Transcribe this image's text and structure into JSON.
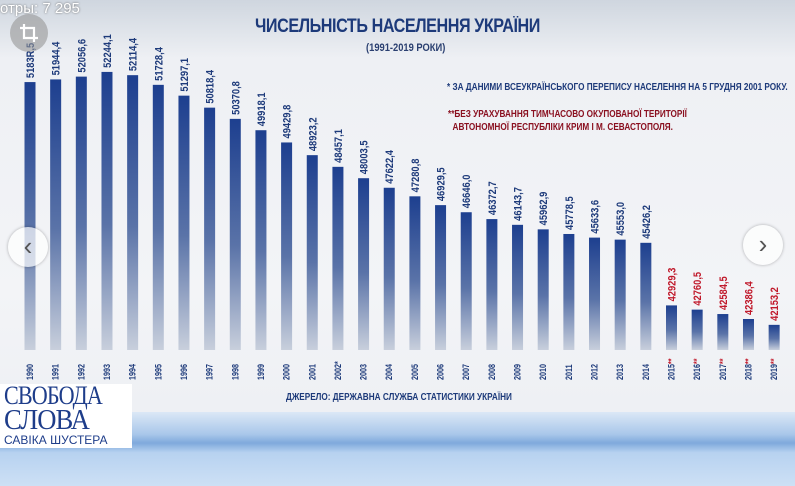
{
  "overlay": {
    "views_text": "отры: 7 295",
    "crop_icon": "crop-icon",
    "prev_icon": "chevron-left-icon",
    "next_icon": "chevron-right-icon"
  },
  "logo": {
    "line1": "СВОБОДА",
    "line2": "СЛОВА",
    "line3": "САВІКА ШУСТЕРА"
  },
  "chart_data": {
    "type": "bar",
    "title": "ЧИСЕЛЬНІСТЬ НАСЕЛЕННЯ УКРАЇНИ",
    "subtitle": "(1991-2019 РОКИ)",
    "notes": [
      "* ЗА ДАНИМИ ВСЕУКРАЇНСЬКОГО ПЕРЕПИСУ НАСЕЛЕННЯ НА 5 ГРУДНЯ 2001 РОКУ.",
      "**БЕЗ УРАХУВАННЯ ТИМЧАСОВО ОКУПОВАНОЇ ТЕРИТОРІЇ\n  АВТОНОМНОЇ РЕСПУБЛІКИ КРИМ І М. СЕВАСТОПОЛЯ."
    ],
    "source": "ДЖЕРЕЛО: ДЕРЖАВНА СЛУЖБА СТАТИСТИКИ УКРАЇНИ",
    "categories": [
      "1990",
      "1991",
      "1992",
      "1993",
      "1994",
      "1995",
      "1996",
      "1997",
      "1998",
      "1999",
      "2000",
      "2001",
      "2002*",
      "2003",
      "2004",
      "2005",
      "2006",
      "2007",
      "2008",
      "2009",
      "2010",
      "2011",
      "2012",
      "2013",
      "2014",
      "2015**",
      "2016**",
      "2017**",
      "2018**",
      "2019**"
    ],
    "values": [
      51838.5,
      51944.4,
      52056.6,
      52244.1,
      52114.4,
      51728.4,
      51297.1,
      50818.4,
      50370.8,
      49918.1,
      49429.8,
      48923.2,
      48457.1,
      48003.5,
      47622.4,
      47280.8,
      46929.5,
      46646.0,
      46372.7,
      46143.7,
      45962.9,
      45778.5,
      45633.6,
      45553.0,
      45426.2,
      42929.3,
      42760.5,
      42584.5,
      42386.4,
      42153.2
    ],
    "labels": [
      "5183R,5",
      "51944,4",
      "52056,6",
      "52244,1",
      "52114,4",
      "51728,4",
      "51297,1",
      "50818,4",
      "50370,8",
      "49918,1",
      "49429,8",
      "48923,2",
      "48457,1",
      "48003,5",
      "47622,4",
      "47280,8",
      "46929,5",
      "46646,0",
      "46372,7",
      "46143,7",
      "45962,9",
      "45778,5",
      "45633,6",
      "45553,0",
      "45426,2",
      "42929,3",
      "42760,5",
      "42584,5",
      "42386,4",
      "42153,2"
    ],
    "ylim": [
      41150,
      52500
    ],
    "colors": {
      "bar": "#1d3f8f",
      "bar_fade": "#c8cfdc",
      "label": "#1d3a7a",
      "label_excl_crimea": "#c0182a"
    },
    "grid": false,
    "legend": "none"
  }
}
